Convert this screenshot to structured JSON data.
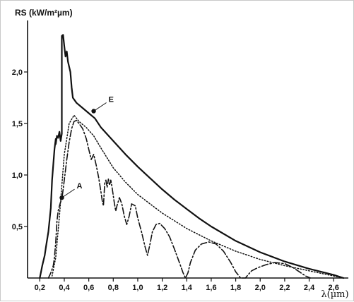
{
  "chart_data": {
    "type": "line",
    "title": "",
    "ylabel": "RS (kW/m²µm)",
    "xlabel": "λ(µm)",
    "xlim": [
      0.1,
      2.72
    ],
    "ylim": [
      0,
      2.5
    ],
    "x_ticks": [
      "0,2",
      "0,4",
      "0,6",
      "0,8",
      "1,0",
      "1,2",
      "1,4",
      "1,6",
      "1,8",
      "2,0",
      "2,2",
      "2,4",
      "2,6"
    ],
    "x_tick_values": [
      0.2,
      0.4,
      0.6,
      0.8,
      1.0,
      1.2,
      1.4,
      1.6,
      1.8,
      2.0,
      2.2,
      2.4,
      2.6
    ],
    "y_ticks": [
      "0,5",
      "1,0",
      "1,5",
      "2,0"
    ],
    "y_tick_values": [
      0.5,
      1.0,
      1.5,
      2.0
    ],
    "grid": false,
    "series": [
      {
        "style": "solid",
        "x": [
          0.2,
          0.21,
          0.22,
          0.24,
          0.25,
          0.27,
          0.29,
          0.3,
          0.31,
          0.32,
          0.33,
          0.33,
          0.34,
          0.35,
          0.36,
          0.37,
          0.38,
          0.38,
          0.38,
          0.38,
          0.39,
          0.4,
          0.41,
          0.42,
          0.43,
          0.44,
          0.45,
          0.46,
          0.47,
          0.5,
          0.55,
          0.6,
          0.65,
          0.7,
          0.8,
          0.9,
          1.0,
          1.1,
          1.2,
          1.3,
          1.4,
          1.5,
          1.6,
          1.8,
          2.0,
          2.2,
          2.4,
          2.6,
          2.68
        ],
        "y": [
          0.0,
          0.06,
          0.12,
          0.22,
          0.3,
          0.45,
          0.68,
          0.95,
          1.1,
          1.25,
          1.35,
          1.3,
          1.38,
          1.36,
          1.42,
          1.33,
          1.4,
          1.6,
          2.0,
          2.35,
          2.36,
          2.25,
          2.15,
          2.2,
          2.1,
          2.05,
          2.0,
          1.85,
          1.75,
          1.7,
          1.65,
          1.6,
          1.55,
          1.46,
          1.33,
          1.2,
          1.08,
          0.97,
          0.86,
          0.76,
          0.67,
          0.58,
          0.5,
          0.36,
          0.25,
          0.16,
          0.09,
          0.03,
          0.0
        ]
      },
      {
        "style": "dotted",
        "x": [
          0.3,
          0.33,
          0.36,
          0.4,
          0.44,
          0.48,
          0.52,
          0.58,
          0.64,
          0.7,
          0.8,
          0.9,
          1.0,
          1.1,
          1.2,
          1.4,
          1.6,
          1.8,
          2.0,
          2.2,
          2.4,
          2.6,
          2.68
        ],
        "y": [
          0.02,
          0.2,
          0.6,
          1.2,
          1.5,
          1.58,
          1.52,
          1.46,
          1.38,
          1.26,
          1.07,
          0.93,
          0.81,
          0.72,
          0.63,
          0.48,
          0.36,
          0.26,
          0.18,
          0.12,
          0.07,
          0.02,
          0.0
        ]
      },
      {
        "style": "dashed",
        "x": [
          0.27,
          0.29,
          0.31,
          0.32,
          0.33,
          0.34,
          0.35,
          0.36,
          0.37,
          0.38,
          0.4,
          0.42,
          0.44,
          0.46,
          0.48,
          0.5,
          0.52,
          0.55,
          0.58,
          0.6,
          0.62,
          0.64,
          0.66,
          0.68,
          0.7,
          0.71,
          0.72,
          0.73,
          0.74,
          0.75,
          0.76,
          0.77,
          0.78,
          0.79,
          0.8,
          0.81,
          0.82,
          0.83,
          0.85,
          0.87,
          0.89,
          0.91,
          0.93,
          0.95,
          0.98,
          1.0,
          1.03,
          1.06,
          1.08,
          1.1,
          1.12,
          1.15,
          1.18,
          1.22,
          1.26,
          1.3,
          1.34,
          1.37,
          1.39,
          1.41,
          1.43,
          1.47,
          1.52,
          1.58,
          1.64,
          1.7,
          1.76,
          1.8,
          1.84,
          1.88,
          1.9,
          1.93,
          1.98,
          2.05,
          2.12,
          2.2,
          2.27,
          2.32,
          2.37,
          2.41
        ],
        "y": [
          0.0,
          0.05,
          0.12,
          0.2,
          0.35,
          0.55,
          0.65,
          0.7,
          0.74,
          0.76,
          0.95,
          1.15,
          1.32,
          1.45,
          1.52,
          1.53,
          1.5,
          1.45,
          1.35,
          1.25,
          1.15,
          1.2,
          1.1,
          0.98,
          0.83,
          0.75,
          0.7,
          0.92,
          0.95,
          0.88,
          0.96,
          0.9,
          0.95,
          0.88,
          0.8,
          0.72,
          0.65,
          0.7,
          0.78,
          0.72,
          0.6,
          0.52,
          0.6,
          0.72,
          0.7,
          0.58,
          0.45,
          0.3,
          0.22,
          0.33,
          0.45,
          0.52,
          0.53,
          0.48,
          0.4,
          0.28,
          0.15,
          0.05,
          0.0,
          0.05,
          0.15,
          0.27,
          0.33,
          0.35,
          0.33,
          0.26,
          0.15,
          0.06,
          0.0,
          0.0,
          0.03,
          0.07,
          0.1,
          0.13,
          0.15,
          0.14,
          0.1,
          0.06,
          0.02,
          0.0
        ]
      }
    ],
    "annotations": [
      {
        "label": "E",
        "x": 0.64,
        "y": 1.62
      },
      {
        "label": "A",
        "x": 0.38,
        "y": 0.78
      }
    ]
  }
}
